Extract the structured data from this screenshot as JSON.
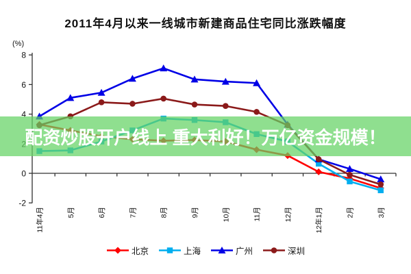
{
  "overlay_banner": {
    "text": "配资炒股开户线上 重大利好！万亿资金规模！",
    "bg_color": "#64D264",
    "bg_opacity": 0.72,
    "text_color": "#FFFFFF"
  },
  "chart_data": {
    "type": "line",
    "title": "2011年4月以来一线城市新建商品住宅同比涨跌幅度",
    "ylabel": "(%)",
    "xlabel": "",
    "ylim": [
      -2,
      8
    ],
    "yticks": [
      8,
      6,
      4,
      2,
      0,
      -2
    ],
    "grid": false,
    "legend_position": "bottom",
    "categories": [
      "11年4月",
      "5月",
      "6月",
      "7月",
      "8月",
      "9月",
      "10月",
      "11月",
      "12月",
      "12年1月",
      "2月",
      "3月"
    ],
    "series": [
      {
        "id": "beijing",
        "name": "北京",
        "color": "#FF0000",
        "marker": "diamond",
        "values": [
          3.3,
          2.9,
          2.5,
          2.3,
          2.2,
          2.25,
          2.15,
          1.6,
          1.2,
          0.1,
          -0.35,
          -1.0
        ]
      },
      {
        "id": "shanghai",
        "name": "上海",
        "color": "#00AEEF",
        "marker": "square",
        "values": [
          1.5,
          1.55,
          2.15,
          2.9,
          3.7,
          3.6,
          3.45,
          2.65,
          2.15,
          0.65,
          -0.55,
          -1.15
        ]
      },
      {
        "id": "guangzhou",
        "name": "广州",
        "color": "#0000E6",
        "marker": "triangle",
        "values": [
          3.85,
          5.1,
          5.45,
          6.4,
          7.1,
          6.35,
          6.2,
          6.1,
          3.3,
          0.95,
          0.3,
          -0.4
        ]
      },
      {
        "id": "shenzhen",
        "name": "深圳",
        "color": "#8B1A1A",
        "marker": "circle",
        "values": [
          3.25,
          3.85,
          4.8,
          4.7,
          5.05,
          4.65,
          4.55,
          4.15,
          3.25,
          0.95,
          -0.1,
          -0.75
        ]
      }
    ]
  }
}
